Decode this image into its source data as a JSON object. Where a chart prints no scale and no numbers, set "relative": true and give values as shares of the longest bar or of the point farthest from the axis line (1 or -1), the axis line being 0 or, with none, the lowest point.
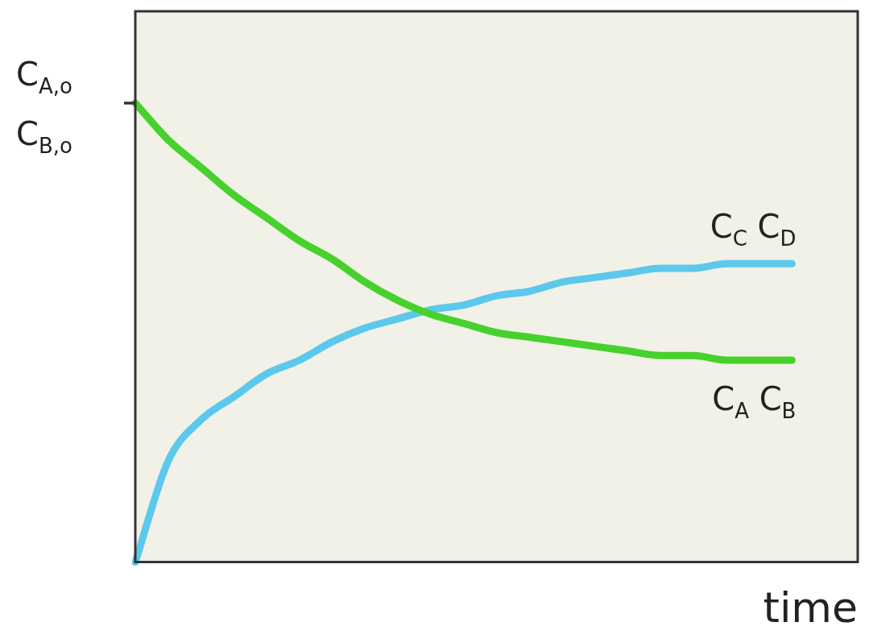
{
  "chart_data": {
    "type": "line",
    "relative": true,
    "xlabel": "time",
    "categories": [
      null,
      null,
      null,
      null,
      null,
      null,
      null,
      null,
      null,
      null,
      null,
      null,
      null,
      null,
      null,
      null,
      null,
      null,
      null,
      null,
      null,
      null,
      null
    ],
    "series": [
      {
        "name": "C$_{A}$ C$_{B}$",
        "color": "#46d12c",
        "values": [
          1.0,
          0.92,
          0.86,
          0.8,
          0.75,
          0.7,
          0.66,
          0.61,
          0.57,
          0.54,
          0.52,
          0.5,
          0.49,
          0.48,
          0.47,
          0.46,
          0.45,
          0.45,
          0.44,
          0.44,
          0.44,
          null,
          null
        ]
      },
      {
        "name": "C$_{C}$ C$_{D}$",
        "color": "#5cc8ec",
        "values": [
          0,
          0.22,
          0.31,
          0.36,
          0.41,
          0.44,
          0.48,
          0.51,
          0.53,
          0.55,
          0.56,
          0.58,
          0.59,
          0.61,
          0.62,
          0.63,
          0.64,
          0.64,
          0.65,
          0.65,
          0.65,
          null,
          null
        ]
      }
    ],
    "annotations": [
      "C$_{A,o}$",
      "C$_{B,o}$"
    ],
    "grid": false,
    "legend": false,
    "marker": "none",
    "line_style": "solid"
  }
}
